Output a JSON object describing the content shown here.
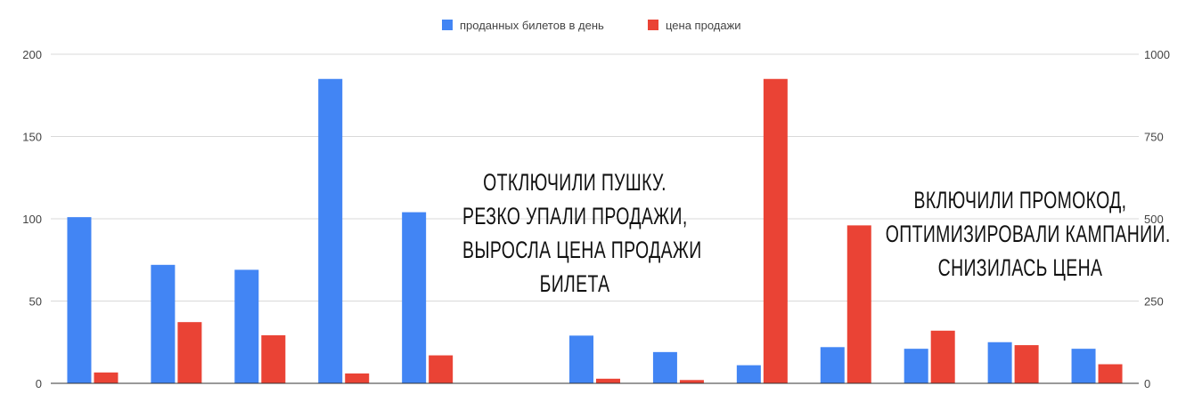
{
  "chart_data": {
    "type": "bar",
    "categories": [
      "",
      "",
      "",
      "",
      "",
      "",
      "",
      "",
      "",
      "",
      "",
      "",
      ""
    ],
    "series": [
      {
        "name": "проданных билетов в день",
        "axis": "left",
        "color": "#4285f4",
        "values": [
          101,
          72,
          69,
          185,
          104,
          0,
          29,
          19,
          11,
          22,
          21,
          25,
          21
        ]
      },
      {
        "name": "цена продажи",
        "axis": "right",
        "color": "#ea4335",
        "values": [
          33,
          186,
          146,
          30,
          85,
          0,
          14,
          10,
          925,
          480,
          160,
          116,
          58
        ]
      }
    ],
    "y_left": {
      "ylim": [
        0,
        200
      ],
      "ticks": [
        "0",
        "50",
        "100",
        "150",
        "200"
      ]
    },
    "y_right": {
      "ylim": [
        0,
        1000
      ],
      "ticks": [
        "0",
        "250",
        "500",
        "750",
        "1000"
      ]
    },
    "grid": true,
    "legend": "top-center",
    "annotations": [
      {
        "lines": [
          "ОТКЛЮЧИЛИ ПУШКУ.",
          "РЕЗКО УПАЛИ ПРОДАЖИ,",
          "ВЫРОСЛА ЦЕНА ПРОДАЖИ",
          "БИЛЕТА"
        ]
      },
      {
        "lines": [
          "ВКЛЮЧИЛИ ПРОМОКОД,",
          "ОПТИМИЗИРОВАЛИ КАМПАНИИ.",
          "СНИЗИЛАСЬ ЦЕНА"
        ]
      }
    ]
  }
}
